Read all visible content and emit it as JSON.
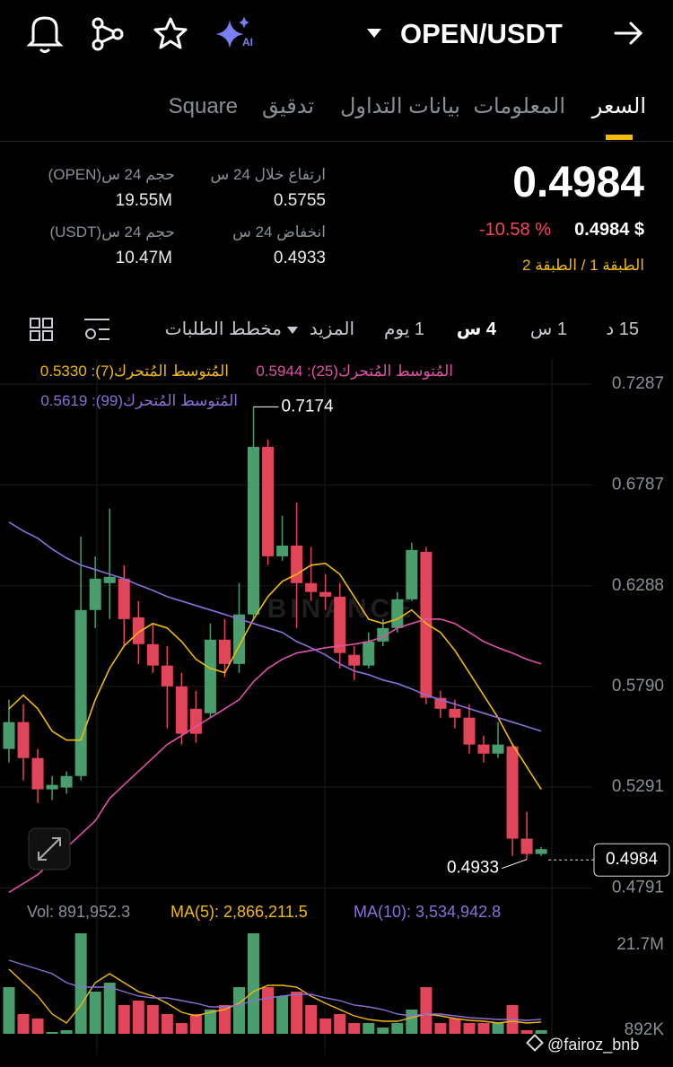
{
  "header": {
    "pair": "OPEN/USDT"
  },
  "tabs": [
    "السعر",
    "المعلومات",
    "بيانات التداول",
    "تدقيق",
    "Square"
  ],
  "ticker": {
    "price": "0.4984",
    "usd_price": "0.4984 $",
    "change": "-10.58 %",
    "tiers": "الطبقة 1 / الطبقة 2"
  },
  "stats": [
    {
      "label": "ارتفاع خلال 24 س",
      "value": "0.5755"
    },
    {
      "label": "انخفاض 24 س",
      "value": "0.4933"
    },
    {
      "label": "حجم 24 س(OPEN)",
      "value": "19.55M"
    },
    {
      "label": "حجم 24 س(USDT)",
      "value": "10.47M"
    }
  ],
  "timeframes": [
    "15 د",
    "1 س",
    "4 س",
    "1 يوم",
    "المزيد",
    "مخطط الطلبات"
  ],
  "chart_data": {
    "type": "candlestick",
    "watermark": "BINANCE",
    "up_color": "#4a9e6e",
    "down_color": "#e0455a",
    "ylim": [
      0.4745,
      0.7411
    ],
    "yticks": [
      0.7287,
      0.6787,
      0.6288,
      {
        "value": 0.579,
        "label": "0.5790"
      },
      0.5291,
      0.4791
    ],
    "grid": true,
    "open": [
      0.548,
      0.5613,
      0.5435,
      0.528,
      0.5289,
      0.5346,
      0.6168,
      0.6301,
      0.6323,
      0.6132,
      0.5999,
      0.5893,
      0.579,
      0.5679,
      0.5657,
      0.6021,
      0.5901,
      0.6146,
      0.6976,
      0.6434,
      0.6487,
      0.6301,
      0.6257,
      0.6234,
      0.5946,
      0.5893,
      0.6012,
      0.6079,
      0.6221,
      0.6456,
      0.5733,
      0.5679,
      0.5635,
      0.5502,
      0.5457,
      0.5493,
      0.5036,
      0.496
    ],
    "high": [
      0.5724,
      0.5702,
      0.548,
      0.5346,
      0.5369,
      0.6532,
      0.6434,
      0.667,
      0.639,
      0.6212,
      0.6101,
      0.599,
      0.5857,
      0.5768,
      0.6101,
      0.6123,
      0.6301,
      0.7174,
      0.7011,
      0.6634,
      0.6701,
      0.6479,
      0.6345,
      0.6301,
      0.599,
      0.6057,
      0.6123,
      0.6257,
      0.6501,
      0.6479,
      0.5768,
      0.5724,
      0.5702,
      0.5546,
      0.5613,
      0.5502,
      0.5169,
      0.4995
    ],
    "low": [
      0.5413,
      0.5324,
      0.5213,
      0.5227,
      0.5258,
      0.5324,
      0.6079,
      0.6123,
      0.599,
      0.5901,
      0.5857,
      0.5582,
      0.5502,
      0.5511,
      0.5635,
      0.5835,
      0.5857,
      0.6123,
      0.639,
      0.6412,
      0.6079,
      0.6212,
      0.6168,
      0.5879,
      0.5821,
      0.5879,
      0.599,
      0.6057,
      0.6212,
      0.5702,
      0.5635,
      0.5582,
      0.5457,
      0.5413,
      0.5435,
      0.495,
      0.4933,
      0.495
    ],
    "close": [
      0.5613,
      0.5435,
      0.528,
      0.5302,
      0.5346,
      0.6168,
      0.6323,
      0.6332,
      0.6123,
      0.5999,
      0.5893,
      0.579,
      0.5555,
      0.5555,
      0.6021,
      0.5901,
      0.6146,
      0.6976,
      0.6434,
      0.6487,
      0.6301,
      0.6257,
      0.6234,
      0.5955,
      0.5893,
      0.6012,
      0.6079,
      0.6221,
      0.6465,
      0.5733,
      0.5679,
      0.5635,
      0.5502,
      0.5457,
      0.5502,
      0.5036,
      0.496,
      0.4984
    ],
    "ma_lines": [
      {
        "name": "المُتوسط المُتحرك(7): 0.5330",
        "color": "#f0b90b",
        "values": [
          0.5679,
          0.5746,
          0.5679,
          0.5568,
          0.5524,
          0.5524,
          0.5724,
          0.5879,
          0.599,
          0.6057,
          0.6101,
          0.6079,
          0.6012,
          0.5924,
          0.5879,
          0.5857,
          0.599,
          0.6123,
          0.6234,
          0.631,
          0.6345,
          0.639,
          0.6399,
          0.6345,
          0.6234,
          0.6123,
          0.6101,
          0.6123,
          0.6168,
          0.6101,
          0.6057,
          0.5968,
          0.5857,
          0.5746,
          0.5635,
          0.5502,
          0.5391,
          0.528
        ]
      },
      {
        "name": "المُتوسط المُتحرك(25): 0.5944",
        "color": "#e052a8",
        "values": [
          0.477,
          0.4814,
          0.4858,
          0.4925,
          0.4991,
          0.5058,
          0.5124,
          0.5235,
          0.5302,
          0.5369,
          0.5435,
          0.5502,
          0.5546,
          0.5591,
          0.5635,
          0.5679,
          0.5724,
          0.5813,
          0.5879,
          0.5924,
          0.5955,
          0.5968,
          0.5981,
          0.599,
          0.5999,
          0.6012,
          0.6035,
          0.6079,
          0.6101,
          0.6123,
          0.6123,
          0.6101,
          0.6057,
          0.6012,
          0.5981,
          0.5955,
          0.5924,
          0.5901
        ]
      },
      {
        "name": "المُتوسط المُتحرك(99): 0.5619",
        "color": "#8c6fd6",
        "values": [
          0.6603,
          0.6559,
          0.6523,
          0.647,
          0.6425,
          0.639,
          0.6368,
          0.6345,
          0.6323,
          0.6292,
          0.6265,
          0.6234,
          0.6212,
          0.619,
          0.6168,
          0.6146,
          0.6123,
          0.6101,
          0.6079,
          0.6057,
          0.6012,
          0.5981,
          0.5946,
          0.5901,
          0.5866,
          0.5848,
          0.5821,
          0.5804,
          0.5777,
          0.5746,
          0.5724,
          0.5702,
          0.5679,
          0.5657,
          0.5635,
          0.5613,
          0.5591,
          0.5568
        ]
      }
    ],
    "volume": {
      "label": "Vol: 891,952.3",
      "ylim": [
        0,
        26740000
      ],
      "yticks": [
        {
          "value": 21700000,
          "label": "21.7M"
        },
        {
          "value": 892000,
          "label": "892K"
        }
      ],
      "values": [
        11400000,
        4820000,
        3730000,
        440000,
        880000,
        24550000,
        10300000,
        12490000,
        7010000,
        8110000,
        7010000,
        4820000,
        2630000,
        4820000,
        5920000,
        7010000,
        11400000,
        24550000,
        11400000,
        9210000,
        10300000,
        7010000,
        3730000,
        4820000,
        2630000,
        2630000,
        1530000,
        2630000,
        5920000,
        11400000,
        2630000,
        3730000,
        2630000,
        2630000,
        2630000,
        7010000,
        880000,
        891952.3
      ],
      "ma_lines": [
        {
          "name": "MA(5): 2,866,211.5",
          "color": "#f0b90b",
          "values": [
            15780000,
            12490000,
            9210000,
            4820000,
            2630000,
            7010000,
            12490000,
            14690000,
            12490000,
            10300000,
            9210000,
            7450000,
            5260000,
            4380000,
            5260000,
            5920000,
            7450000,
            10300000,
            11840000,
            11840000,
            11400000,
            9210000,
            7450000,
            5920000,
            4380000,
            3510000,
            3070000,
            3070000,
            3950000,
            4820000,
            4380000,
            3730000,
            3290000,
            3070000,
            2630000,
            3070000,
            2630000,
            2866211.5
          ]
        },
        {
          "name": "MA(10): 3,534,942.8",
          "color": "#8c6fd6",
          "values": [
            17970000,
            16880000,
            15780000,
            14690000,
            12490000,
            11400000,
            11400000,
            11400000,
            10300000,
            9210000,
            8770000,
            8770000,
            8110000,
            7450000,
            6580000,
            6580000,
            7010000,
            8110000,
            8770000,
            9210000,
            9640000,
            9640000,
            8770000,
            8110000,
            7010000,
            6580000,
            5920000,
            4820000,
            4380000,
            4820000,
            4820000,
            4380000,
            3950000,
            3730000,
            3510000,
            3510000,
            3290000,
            3534942.8
          ]
        }
      ]
    }
  },
  "watermark": "@fairoz_bnb"
}
